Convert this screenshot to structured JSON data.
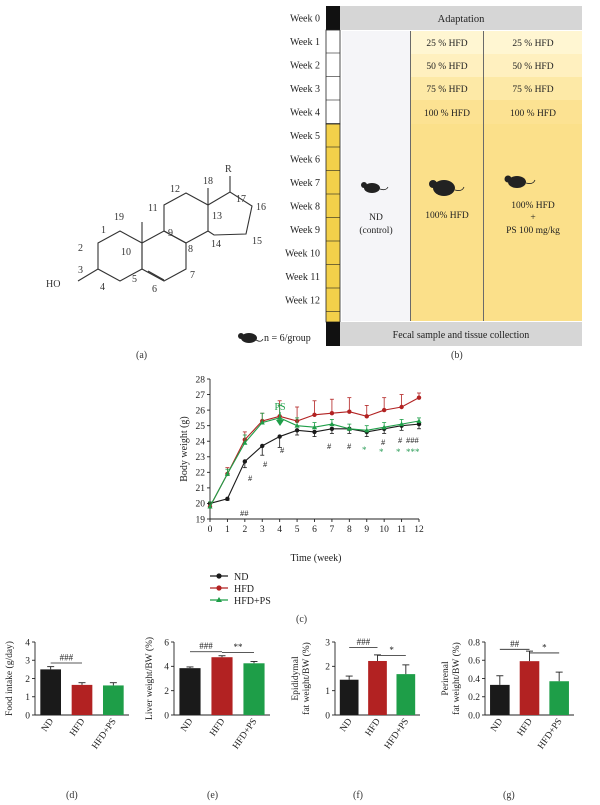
{
  "colors": {
    "nd": "#1a1a1a",
    "hfd": "#b22222",
    "hfdps": "#1e9e48",
    "adapt_bar": "#d6d6d6",
    "yellow": "#fbe08a",
    "yellow_light": "#fff6d2",
    "nd_col": "#f5f5f8",
    "timeline_yellow": "#f3d04a",
    "green_star": "#2e9e5a"
  },
  "panel_a": {
    "label": "(a)",
    "substituent": "R",
    "hydroxyl": "HO",
    "atom_numbers": [
      "1",
      "2",
      "3",
      "4",
      "5",
      "6",
      "7",
      "8",
      "9",
      "10",
      "11",
      "12",
      "13",
      "14",
      "15",
      "16",
      "17",
      "18",
      "19"
    ]
  },
  "panel_b": {
    "label": "(b)",
    "weeks": [
      "Week 0",
      "Week 1",
      "Week 2",
      "Week 3",
      "Week 4",
      "Week 5",
      "Week 6",
      "Week 7",
      "Week 8",
      "Week 9",
      "Week 10",
      "Week 11",
      "Week 12"
    ],
    "adaptation": "Adaptation",
    "nd_label": "ND",
    "nd_sub": "(control)",
    "hfd_ramp": [
      "25 % HFD",
      "50 % HFD",
      "75 % HFD",
      "100 % HFD"
    ],
    "hfd_steady": "100% HFD",
    "ps_ramp": [
      "25 % HFD",
      "50 % HFD",
      "75 % HFD",
      "100 % HFD"
    ],
    "ps_steady_1": "100% HFD",
    "ps_steady_2": "+",
    "ps_steady_3": "PS 100 mg/kg",
    "n_label": "n = 6/group",
    "collection": "Fecal sample and tissue collection"
  },
  "panel_c": {
    "label": "(c)",
    "ps_arrow": "PS",
    "legend": [
      "ND",
      "HFD",
      "HFD+PS"
    ],
    "annotations": {
      "hash": [
        "##",
        "#",
        "#",
        "#",
        "#",
        "#",
        "#",
        "#",
        "###"
      ],
      "star": [
        "*",
        "*",
        "*",
        "***"
      ]
    }
  },
  "bar_panels": {
    "labels": [
      "(d)",
      "(e)",
      "(f)",
      "(g)"
    ],
    "sig": [
      [
        "###"
      ],
      [
        "###",
        "**"
      ],
      [
        "###",
        "*"
      ],
      [
        "##",
        "*"
      ]
    ]
  },
  "chart_data": [
    {
      "type": "line",
      "title": "",
      "xlabel": "Time (week)",
      "ylabel": "Body weight (g)",
      "x": [
        0,
        1,
        2,
        3,
        4,
        5,
        6,
        7,
        8,
        9,
        10,
        11,
        12
      ],
      "xlim": [
        0,
        12
      ],
      "ylim": [
        19,
        28
      ],
      "xticks": [
        "0",
        "1",
        "2",
        "3",
        "4",
        "5",
        "6",
        "7",
        "8",
        "9",
        "10",
        "11",
        "12"
      ],
      "yticks": [
        "19",
        "20",
        "21",
        "22",
        "23",
        "24",
        "25",
        "26",
        "27",
        "28"
      ],
      "series": [
        {
          "name": "ND",
          "values": [
            20.0,
            20.3,
            22.7,
            23.7,
            24.3,
            24.7,
            24.6,
            24.8,
            24.8,
            24.6,
            24.8,
            25.0,
            25.1
          ],
          "err": [
            0.2,
            0.1,
            0.4,
            0.6,
            0.7,
            0.3,
            0.3,
            0.3,
            0.3,
            0.3,
            0.3,
            0.3,
            0.3
          ]
        },
        {
          "name": "HFD",
          "values": [
            19.8,
            21.9,
            24.1,
            25.3,
            25.6,
            25.3,
            25.7,
            25.8,
            25.9,
            25.6,
            26.0,
            26.2,
            26.8
          ],
          "err": [
            0.3,
            0.4,
            0.5,
            0.5,
            1.0,
            0.9,
            0.9,
            0.9,
            0.9,
            0.7,
            0.8,
            0.8,
            0.3
          ]
        },
        {
          "name": "HFD+PS",
          "values": [
            19.8,
            21.9,
            23.9,
            25.2,
            25.5,
            25.0,
            24.9,
            25.1,
            24.8,
            24.7,
            24.9,
            25.1,
            25.3
          ],
          "err": [
            0.3,
            0.3,
            0.5,
            0.6,
            0.8,
            0.5,
            0.3,
            0.3,
            0.3,
            0.3,
            0.3,
            0.3,
            0.2
          ]
        }
      ]
    },
    {
      "type": "bar",
      "title": "",
      "xlabel": "",
      "ylabel": "Food intake (g/day)",
      "categories": [
        "ND",
        "HFD",
        "HFD+PS"
      ],
      "values": [
        2.5,
        1.65,
        1.62
      ],
      "err": [
        0.15,
        0.12,
        0.15
      ],
      "ylim": [
        0,
        4
      ],
      "yticks": [
        "0",
        "1",
        "2",
        "3",
        "4"
      ]
    },
    {
      "type": "bar",
      "title": "",
      "xlabel": "",
      "ylabel": "Liver weight/BW (%)",
      "categories": [
        "ND",
        "HFD",
        "HFD+PS"
      ],
      "values": [
        3.85,
        4.75,
        4.25
      ],
      "err": [
        0.1,
        0.12,
        0.15
      ],
      "ylim": [
        0,
        6
      ],
      "yticks": [
        "0",
        "2",
        "4",
        "6"
      ]
    },
    {
      "type": "bar",
      "title": "",
      "xlabel": "",
      "ylabel": [
        "Epididymal",
        "fat weight/BW (%)"
      ],
      "categories": [
        "ND",
        "HFD",
        "HFD+PS"
      ],
      "values": [
        1.45,
        2.22,
        1.68
      ],
      "err": [
        0.15,
        0.25,
        0.38
      ],
      "ylim": [
        0,
        3
      ],
      "yticks": [
        "0",
        "1",
        "2",
        "3"
      ]
    },
    {
      "type": "bar",
      "title": "",
      "xlabel": "",
      "ylabel": [
        "Perirenal",
        "fat weight/BW (%)"
      ],
      "categories": [
        "ND",
        "HFD",
        "HFD+PS"
      ],
      "values": [
        0.33,
        0.59,
        0.37
      ],
      "err": [
        0.1,
        0.11,
        0.1
      ],
      "ylim": [
        0,
        0.8
      ],
      "yticks": [
        "0.0",
        "0.2",
        "0.4",
        "0.6",
        "0.8"
      ]
    }
  ]
}
